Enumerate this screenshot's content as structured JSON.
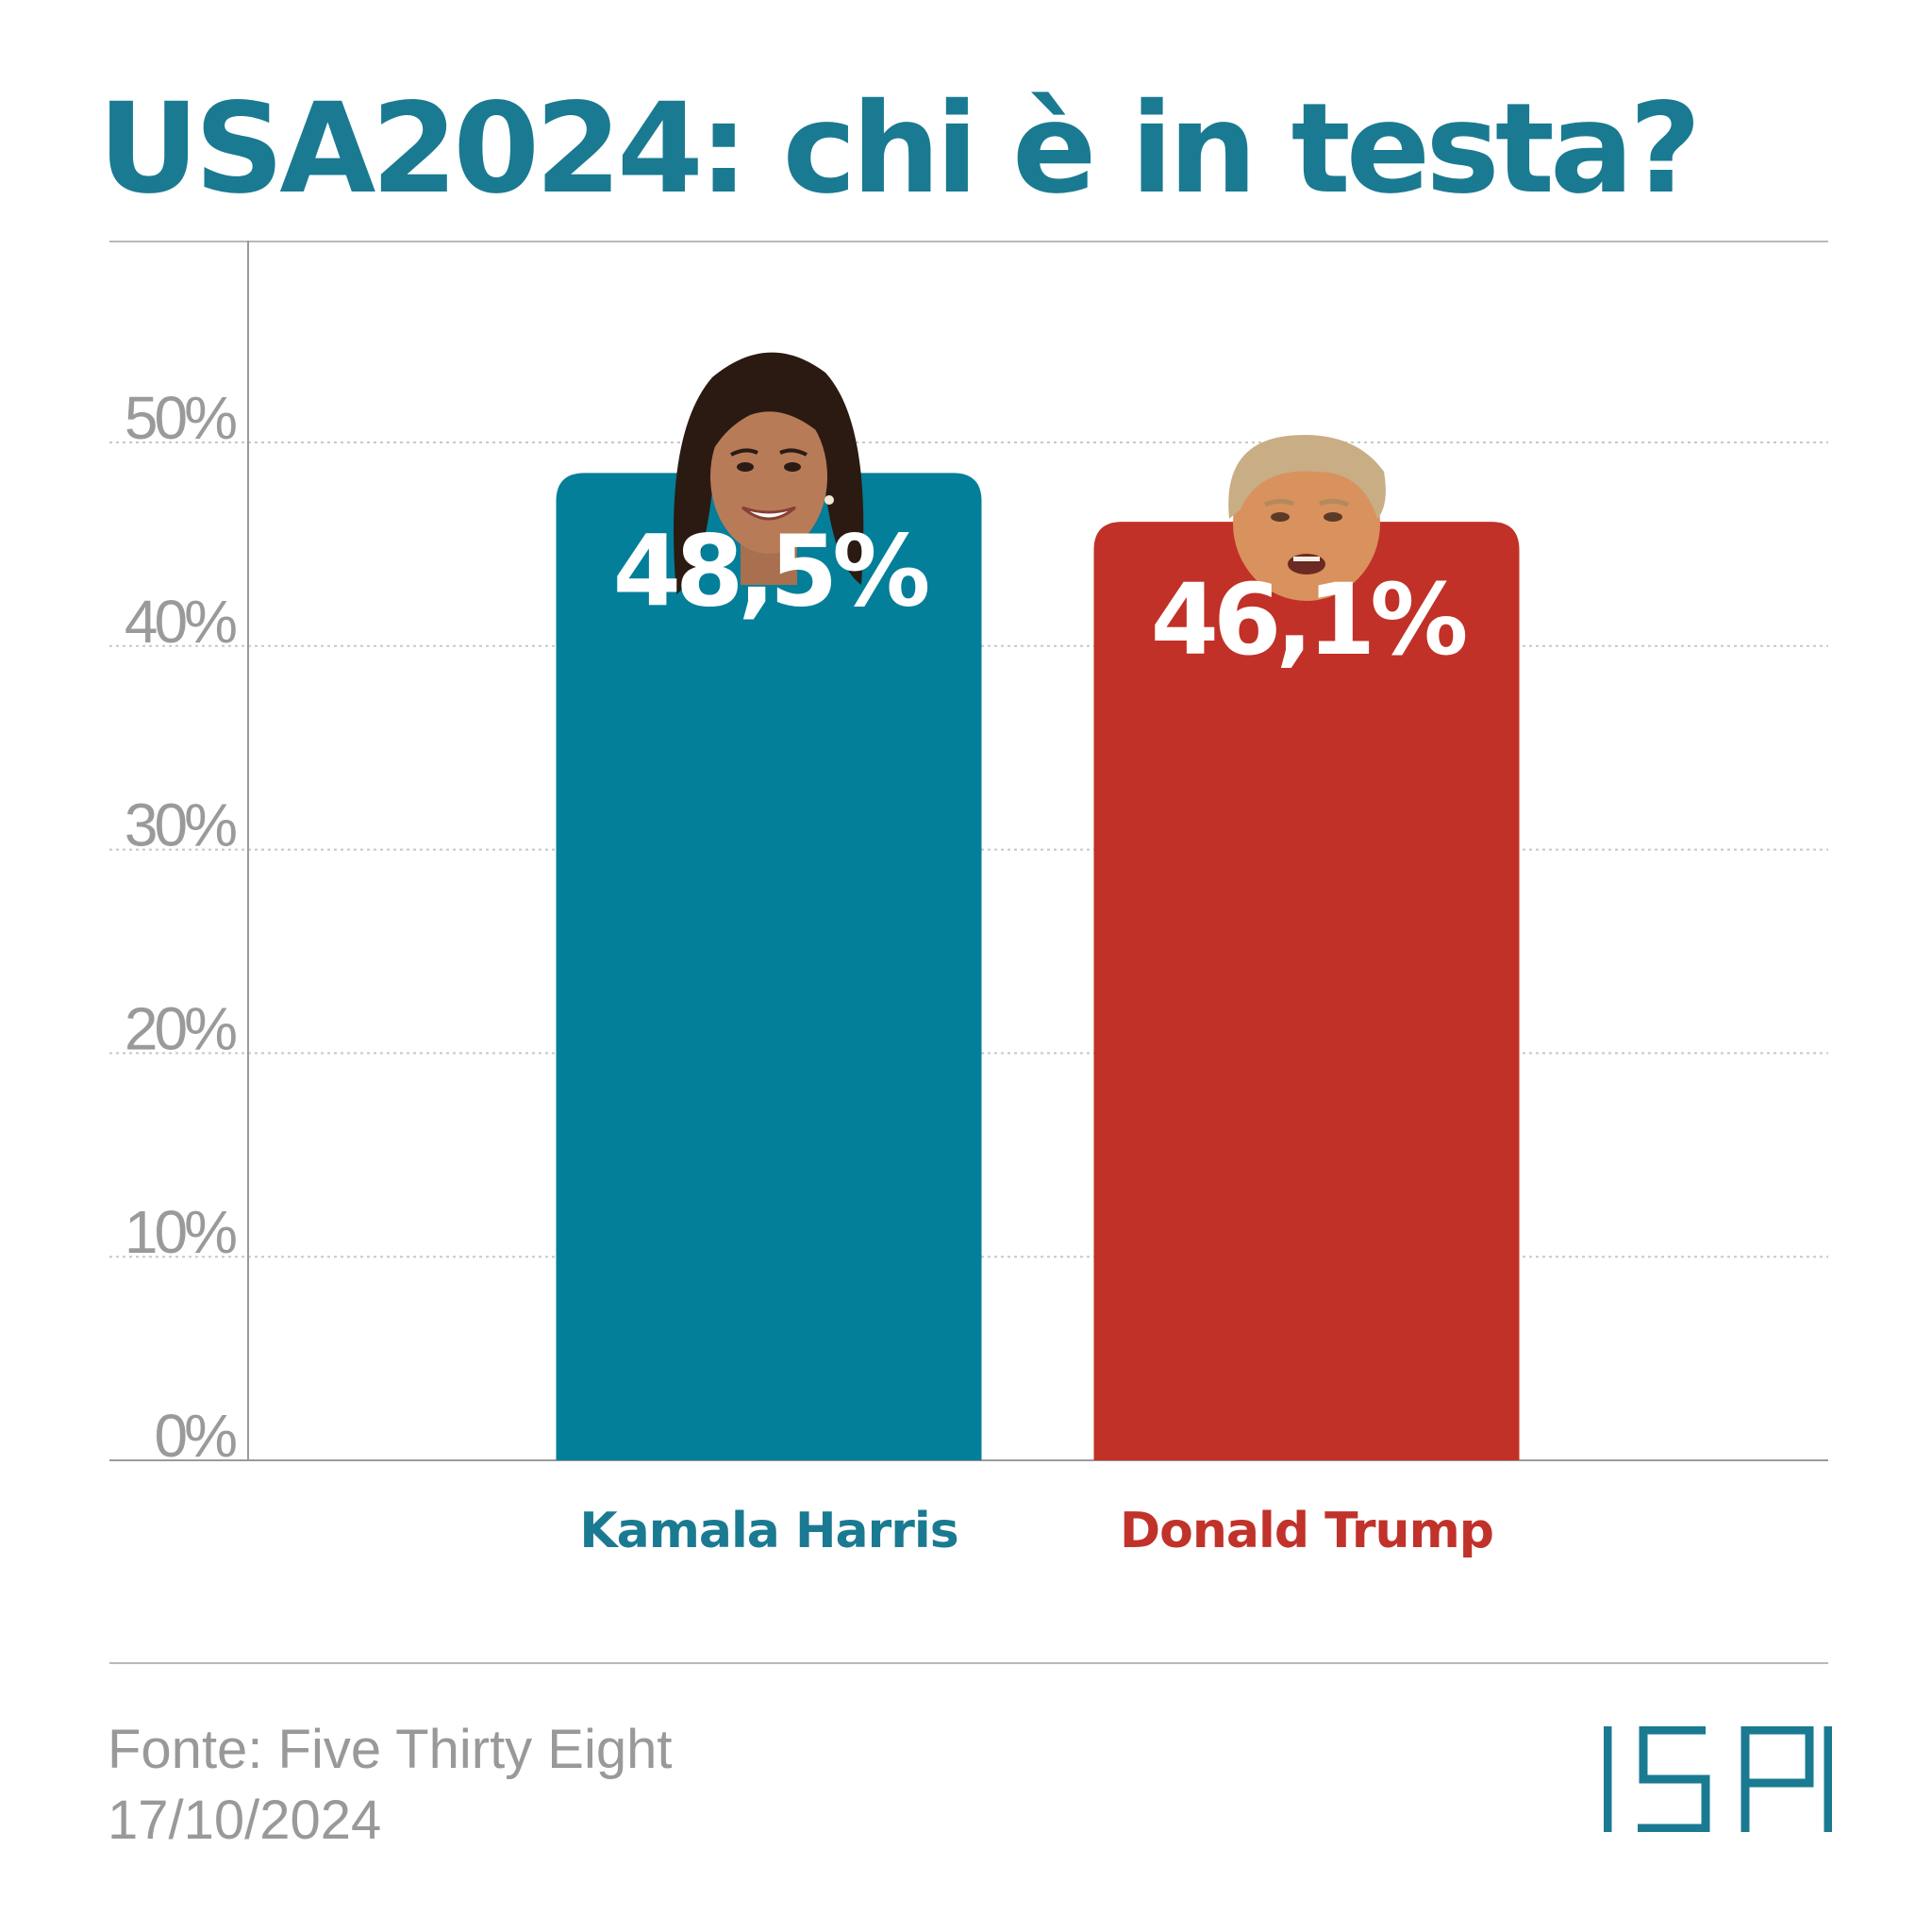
{
  "header": {
    "title": "USA2024: chi è in testa?"
  },
  "chart_data": {
    "type": "bar",
    "categories": [
      "Kamala Harris",
      "Donald Trump"
    ],
    "values": [
      48.5,
      46.1
    ],
    "data_labels": [
      "48,5%",
      "46,1%"
    ],
    "colors": [
      "#037f99",
      "#c13127"
    ],
    "label_colors": [
      "#1a7a91",
      "#c0322a"
    ],
    "title": "USA2024: chi è in testa?",
    "xlabel": "",
    "ylabel": "",
    "ylim": [
      0,
      60
    ],
    "yticks": [
      0,
      10,
      20,
      30,
      40,
      50
    ],
    "ytick_labels": [
      "0%",
      "10%",
      "20%",
      "30%",
      "40%",
      "50%"
    ],
    "grid": true,
    "grid_style": "dotted",
    "legend": "none",
    "images": [
      "harris-face",
      "trump-face"
    ]
  },
  "footer": {
    "source": "Fonte: Five Thirty Eight",
    "date": "17/10/2024",
    "logo_text": "ISPI"
  },
  "colors": {
    "title": "#1a7a91",
    "harris": "#037f99",
    "trump": "#c13127",
    "axis_text": "#9a9a9a",
    "grid": "#c8c8c8",
    "rule": "#b9b9b9",
    "logo": "#1a7a91"
  }
}
